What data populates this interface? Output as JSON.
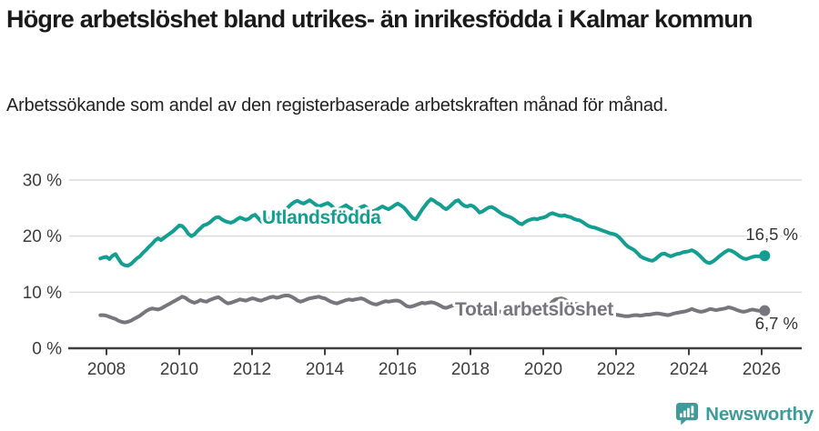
{
  "header": {
    "title": "Högre arbetslöshet bland utrikes- än inrikesfödda i Kalmar kommun",
    "subtitle": "Arbetssökande som andel av den registerbaserade arbetskraften månad för månad."
  },
  "footer": {
    "brand": "Newsworthy"
  },
  "colors": {
    "foreign_born_line": "#139e91",
    "total_line": "#76767c",
    "brand_teal": "#3d9c99",
    "axis": "#3f3f3f",
    "grid": "#dcdcdc"
  },
  "chart_data": {
    "type": "line",
    "title": "Högre arbetslöshet bland utrikes- än inrikesfödda i Kalmar kommun",
    "subtitle": "Arbetssökande som andel av den registerbaserade arbetskraften månad för månad.",
    "unit": "%",
    "x_start": 2007.8333,
    "x_step": 0.0833333,
    "x_range": [
      2007.8333,
      2026.0833
    ],
    "ylim": [
      0,
      32
    ],
    "grid": "horizontal",
    "legend_position": "inline-labels",
    "x_ticks": [
      2008,
      2010,
      2012,
      2014,
      2016,
      2018,
      2020,
      2022,
      2024,
      2026
    ],
    "y_ticks": [
      {
        "value": 30,
        "label": "30 %"
      },
      {
        "value": 20,
        "label": "20 %"
      },
      {
        "value": 10,
        "label": "10 %"
      },
      {
        "value": 0,
        "label": "0 %"
      }
    ],
    "series": [
      {
        "name": "Utlandsfödda",
        "color": "#139e91",
        "end_label": "16,5 %",
        "end_value": 16.5,
        "values": [
          16.0,
          16.2,
          16.3,
          15.9,
          16.5,
          16.8,
          15.9,
          15.1,
          14.8,
          14.7,
          15.0,
          15.5,
          16.0,
          16.4,
          17.0,
          17.5,
          18.1,
          18.6,
          19.2,
          19.6,
          19.3,
          19.7,
          20.1,
          20.5,
          20.9,
          21.4,
          21.9,
          21.8,
          21.2,
          20.4,
          20.0,
          20.3,
          20.9,
          21.4,
          21.9,
          22.1,
          22.4,
          22.9,
          23.3,
          23.4,
          23.0,
          22.7,
          22.5,
          22.4,
          22.6,
          23.0,
          23.3,
          23.1,
          22.9,
          23.1,
          23.6,
          23.8,
          23.2,
          22.6,
          22.4,
          22.9,
          23.3,
          23.6,
          23.5,
          23.8,
          24.2,
          24.7,
          25.2,
          25.7,
          26.1,
          26.3,
          26.0,
          25.8,
          26.1,
          26.4,
          26.0,
          25.6,
          25.3,
          25.5,
          25.7,
          25.9,
          25.5,
          25.0,
          24.7,
          24.9,
          25.2,
          25.5,
          25.1,
          24.8,
          24.6,
          24.9,
          25.2,
          25.4,
          25.0,
          24.6,
          24.4,
          24.7,
          25.0,
          25.3,
          25.0,
          24.8,
          25.1,
          25.5,
          25.8,
          25.5,
          25.1,
          24.5,
          23.8,
          23.2,
          23.0,
          23.8,
          24.7,
          25.4,
          26.1,
          26.6,
          26.3,
          25.9,
          25.6,
          25.1,
          24.8,
          25.2,
          25.7,
          26.2,
          26.4,
          25.8,
          25.4,
          25.3,
          25.5,
          25.3,
          24.8,
          24.2,
          24.4,
          24.8,
          25.1,
          25.2,
          24.9,
          24.5,
          24.1,
          23.8,
          23.6,
          23.4,
          23.1,
          22.7,
          22.3,
          22.1,
          22.5,
          22.8,
          23.0,
          23.1,
          23.0,
          23.2,
          23.3,
          23.5,
          23.9,
          24.1,
          23.9,
          23.7,
          23.6,
          23.7,
          23.5,
          23.4,
          23.1,
          22.9,
          22.8,
          22.5,
          22.1,
          21.8,
          21.6,
          21.5,
          21.3,
          21.1,
          20.9,
          20.7,
          20.5,
          20.4,
          20.2,
          19.8,
          19.2,
          18.6,
          18.1,
          17.8,
          17.5,
          17.0,
          16.4,
          16.1,
          15.9,
          15.7,
          15.6,
          15.9,
          16.4,
          16.8,
          16.9,
          16.6,
          16.4,
          16.6,
          16.8,
          16.9,
          17.1,
          17.2,
          17.3,
          17.5,
          17.2,
          16.8,
          16.3,
          15.7,
          15.3,
          15.2,
          15.5,
          15.9,
          16.4,
          16.8,
          17.2,
          17.5,
          17.4,
          17.1,
          16.7,
          16.3,
          16.0,
          15.9,
          16.1,
          16.3,
          16.4,
          16.4,
          16.4,
          16.5
        ]
      },
      {
        "name": "Total arbetslöshet",
        "color": "#76767c",
        "end_label": "6,7 %",
        "end_value": 6.7,
        "values": [
          5.9,
          5.9,
          5.8,
          5.6,
          5.4,
          5.2,
          4.9,
          4.7,
          4.6,
          4.7,
          4.9,
          5.2,
          5.5,
          5.8,
          6.2,
          6.6,
          6.9,
          7.1,
          7.0,
          6.9,
          7.1,
          7.4,
          7.7,
          8.0,
          8.3,
          8.6,
          8.9,
          9.2,
          9.0,
          8.6,
          8.3,
          8.1,
          8.3,
          8.6,
          8.4,
          8.3,
          8.6,
          8.8,
          9.0,
          9.1,
          8.7,
          8.3,
          8.0,
          8.1,
          8.3,
          8.5,
          8.7,
          8.6,
          8.5,
          8.7,
          8.9,
          8.8,
          8.6,
          8.5,
          8.7,
          8.9,
          9.1,
          9.2,
          9.0,
          9.1,
          9.3,
          9.4,
          9.4,
          9.2,
          8.9,
          8.5,
          8.3,
          8.5,
          8.7,
          8.9,
          9.0,
          9.1,
          9.2,
          9.0,
          8.9,
          8.6,
          8.3,
          8.1,
          8.0,
          8.2,
          8.4,
          8.6,
          8.7,
          8.6,
          8.7,
          8.8,
          8.9,
          8.7,
          8.4,
          8.1,
          7.9,
          7.8,
          8.0,
          8.2,
          8.4,
          8.3,
          8.4,
          8.5,
          8.5,
          8.3,
          7.9,
          7.5,
          7.4,
          7.5,
          7.7,
          7.9,
          8.1,
          8.0,
          8.1,
          8.2,
          8.1,
          7.9,
          7.6,
          7.3,
          7.2,
          7.4,
          7.6,
          7.7,
          7.5,
          7.3,
          7.2,
          7.3,
          7.3,
          7.1,
          6.9,
          6.7,
          6.6,
          6.7,
          6.9,
          7.0,
          6.8,
          6.6,
          6.5,
          6.6,
          6.6,
          6.5,
          6.4,
          6.3,
          6.2,
          6.3,
          6.5,
          6.6,
          6.5,
          6.4,
          6.5,
          6.6,
          6.8,
          7.0,
          7.6,
          8.3,
          8.7,
          8.8,
          8.9,
          8.7,
          8.4,
          8.2,
          8.0,
          7.9,
          7.8,
          7.6,
          7.4,
          7.2,
          7.0,
          6.9,
          6.8,
          6.6,
          6.4,
          6.3,
          6.2,
          6.1,
          6.0,
          5.9,
          5.8,
          5.7,
          5.7,
          5.8,
          5.9,
          5.9,
          5.8,
          5.9,
          6.0,
          6.0,
          6.1,
          6.2,
          6.2,
          6.1,
          6.0,
          5.9,
          6.0,
          6.2,
          6.3,
          6.4,
          6.5,
          6.6,
          6.8,
          7.0,
          6.8,
          6.6,
          6.5,
          6.6,
          6.8,
          7.0,
          6.9,
          6.8,
          6.9,
          7.0,
          7.1,
          7.3,
          7.2,
          7.0,
          6.8,
          6.6,
          6.5,
          6.6,
          6.8,
          6.9,
          6.8,
          6.7,
          6.7,
          6.7
        ]
      }
    ]
  }
}
